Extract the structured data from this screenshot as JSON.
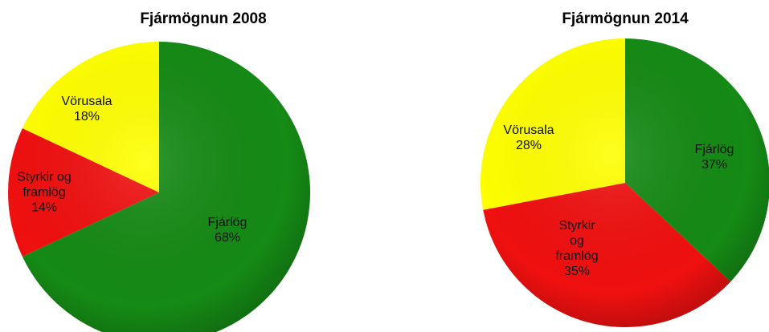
{
  "chart_data": [
    {
      "type": "pie",
      "title": "Fjármögnun 2008",
      "categories": [
        "Fjárlög",
        "Styrkir og framlög",
        "Vörusala"
      ],
      "values": [
        68,
        14,
        18
      ],
      "value_labels": [
        "68%",
        "14%",
        "18%"
      ],
      "colors": [
        "#158a15",
        "#f01010",
        "#ffff00"
      ]
    },
    {
      "type": "pie",
      "title": "Fjármögnun 2014",
      "categories": [
        "Fjárlög",
        "Styrkir og framlög",
        "Vörusala"
      ],
      "values": [
        37,
        35,
        28
      ],
      "value_labels": [
        "37%",
        "35%",
        "28%"
      ],
      "colors": [
        "#158a15",
        "#f01010",
        "#ffff00"
      ]
    }
  ]
}
